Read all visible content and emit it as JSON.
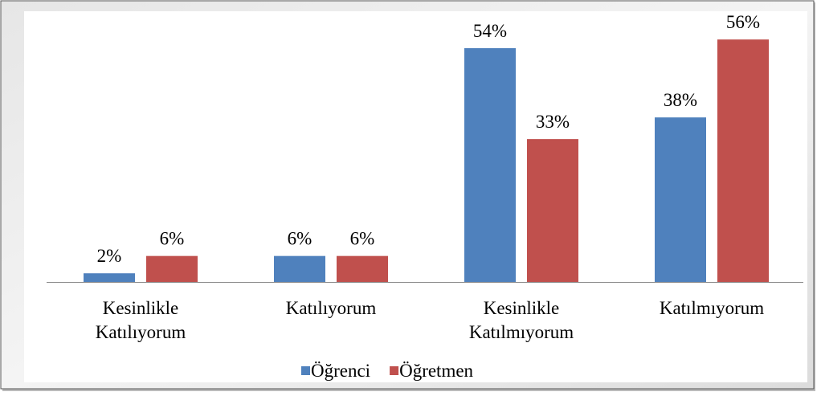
{
  "chart_data": {
    "type": "bar",
    "categories": [
      "Kesinlikle\nKatılıyorum",
      "Katılıyorum",
      "Kesinlikle\nKatılmıyorum",
      "Katılmıyorum"
    ],
    "series": [
      {
        "name": "Öğrenci",
        "color": "#4f81bd",
        "values": [
          2,
          6,
          54,
          38
        ],
        "value_labels": [
          "2%",
          "6%",
          "54%",
          "38%"
        ]
      },
      {
        "name": "Öğretmen",
        "color": "#c0504d",
        "values": [
          6,
          6,
          33,
          56
        ],
        "value_labels": [
          "6%",
          "6%",
          "33%",
          "56%"
        ]
      }
    ],
    "legend": "bottom"
  }
}
